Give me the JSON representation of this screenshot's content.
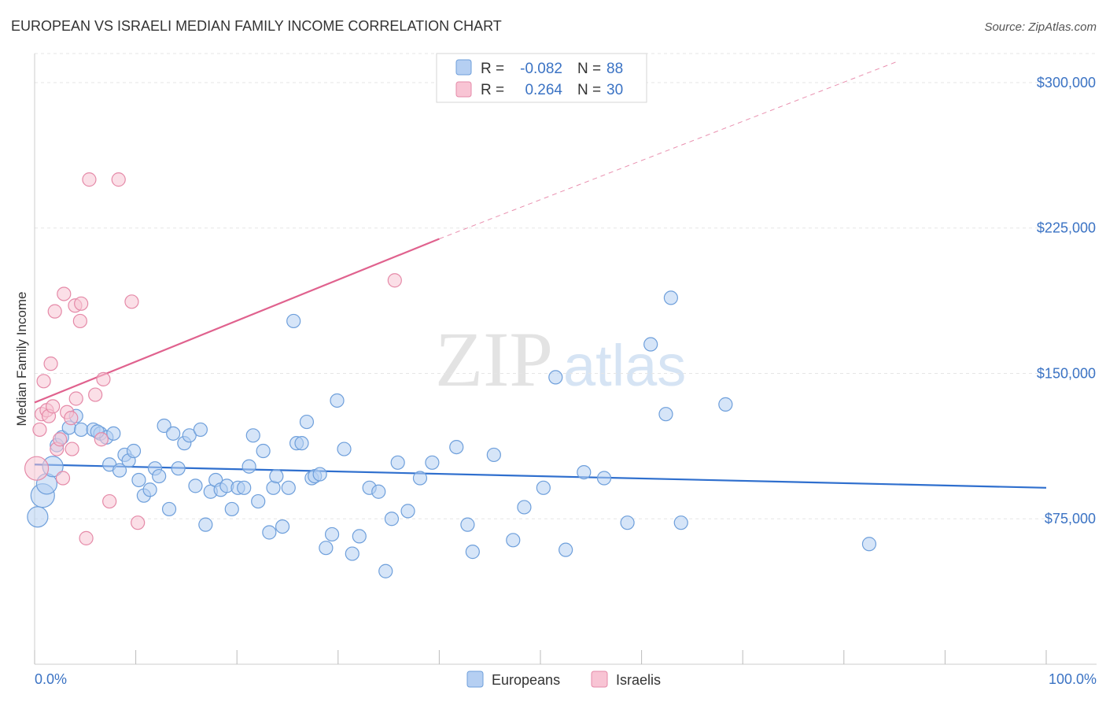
{
  "title": "EUROPEAN VS ISRAELI MEDIAN FAMILY INCOME CORRELATION CHART",
  "source": "Source: ZipAtlas.com",
  "watermark": {
    "part1": "ZIP",
    "part2": "atlas"
  },
  "colors": {
    "european": "#6e9fdb",
    "european_fill": "#b5cff2",
    "european_line": "#2f6fce",
    "israeli": "#e58aa8",
    "israeli_fill": "#f8c4d4",
    "israeli_line": "#e0628e",
    "tick_text": "#3b73c4",
    "grid": "#e6e6e6"
  },
  "legend": {
    "rows": [
      {
        "r_label": "R =",
        "r_value": "-0.082",
        "n_label": "N =",
        "n_value": "88"
      },
      {
        "r_label": "R =",
        "r_value": "0.264",
        "n_label": "N =",
        "n_value": "30"
      }
    ]
  },
  "bottom_legend": [
    "Europeans",
    "Israelis"
  ],
  "chart_data": {
    "type": "scatter",
    "title": "EUROPEAN VS ISRAELI MEDIAN FAMILY INCOME CORRELATION CHART",
    "xlabel": "",
    "ylabel": "Median Family Income",
    "xlim": [
      0,
      100
    ],
    "ylim": [
      0,
      315000
    ],
    "x_tick_labels": [
      "0.0%",
      "100.0%"
    ],
    "y_ticks": [
      75000,
      150000,
      225000,
      300000
    ],
    "y_tick_labels": [
      "$75,000",
      "$150,000",
      "$225,000",
      "$300,000"
    ],
    "grid": true,
    "legend_position": "top-center",
    "series": [
      {
        "name": "Europeans",
        "r": -0.082,
        "n": 88,
        "trend": {
          "x": [
            0,
            100
          ],
          "y": [
            103000,
            91000
          ],
          "solid_until": 100
        },
        "points": [
          {
            "x": 0.3,
            "y": 76000,
            "s": "l"
          },
          {
            "x": 0.8,
            "y": 87000,
            "s": "xl"
          },
          {
            "x": 1.2,
            "y": 93000,
            "s": "l"
          },
          {
            "x": 1.8,
            "y": 102000,
            "s": "l"
          },
          {
            "x": 2.2,
            "y": 113000,
            "s": "m"
          },
          {
            "x": 2.7,
            "y": 117000,
            "s": "m"
          },
          {
            "x": 3.4,
            "y": 122000,
            "s": "m"
          },
          {
            "x": 4.1,
            "y": 128000,
            "s": "m"
          },
          {
            "x": 4.6,
            "y": 121000,
            "s": "m"
          },
          {
            "x": 5.8,
            "y": 121000,
            "s": "m"
          },
          {
            "x": 6.5,
            "y": 119000,
            "s": "m"
          },
          {
            "x": 7.1,
            "y": 117000,
            "s": "m"
          },
          {
            "x": 7.4,
            "y": 103000,
            "s": "m"
          },
          {
            "x": 7.8,
            "y": 119000,
            "s": "m"
          },
          {
            "x": 8.4,
            "y": 100000,
            "s": "m"
          },
          {
            "x": 8.9,
            "y": 108000,
            "s": "m"
          },
          {
            "x": 9.3,
            "y": 105000,
            "s": "m"
          },
          {
            "x": 9.8,
            "y": 110000,
            "s": "m"
          },
          {
            "x": 10.3,
            "y": 95000,
            "s": "m"
          },
          {
            "x": 10.8,
            "y": 87000,
            "s": "m"
          },
          {
            "x": 11.4,
            "y": 90000,
            "s": "m"
          },
          {
            "x": 11.9,
            "y": 101000,
            "s": "m"
          },
          {
            "x": 12.3,
            "y": 97000,
            "s": "m"
          },
          {
            "x": 12.8,
            "y": 123000,
            "s": "m"
          },
          {
            "x": 13.3,
            "y": 80000,
            "s": "m"
          },
          {
            "x": 13.7,
            "y": 119000,
            "s": "m"
          },
          {
            "x": 14.2,
            "y": 101000,
            "s": "m"
          },
          {
            "x": 14.8,
            "y": 114000,
            "s": "m"
          },
          {
            "x": 15.3,
            "y": 118000,
            "s": "m"
          },
          {
            "x": 15.9,
            "y": 92000,
            "s": "m"
          },
          {
            "x": 16.4,
            "y": 121000,
            "s": "m"
          },
          {
            "x": 16.9,
            "y": 72000,
            "s": "m"
          },
          {
            "x": 17.4,
            "y": 89000,
            "s": "m"
          },
          {
            "x": 17.9,
            "y": 95000,
            "s": "m"
          },
          {
            "x": 18.4,
            "y": 90000,
            "s": "m"
          },
          {
            "x": 19.0,
            "y": 92000,
            "s": "m"
          },
          {
            "x": 19.5,
            "y": 80000,
            "s": "m"
          },
          {
            "x": 20.1,
            "y": 91000,
            "s": "m"
          },
          {
            "x": 20.7,
            "y": 91000,
            "s": "m"
          },
          {
            "x": 21.2,
            "y": 102000,
            "s": "m"
          },
          {
            "x": 21.6,
            "y": 118000,
            "s": "m"
          },
          {
            "x": 22.1,
            "y": 84000,
            "s": "m"
          },
          {
            "x": 22.6,
            "y": 110000,
            "s": "m"
          },
          {
            "x": 23.2,
            "y": 68000,
            "s": "m"
          },
          {
            "x": 23.6,
            "y": 91000,
            "s": "m"
          },
          {
            "x": 23.9,
            "y": 97000,
            "s": "m"
          },
          {
            "x": 24.5,
            "y": 71000,
            "s": "m"
          },
          {
            "x": 25.1,
            "y": 91000,
            "s": "m"
          },
          {
            "x": 25.6,
            "y": 177000,
            "s": "m"
          },
          {
            "x": 25.9,
            "y": 114000,
            "s": "m"
          },
          {
            "x": 26.4,
            "y": 114000,
            "s": "m"
          },
          {
            "x": 26.9,
            "y": 125000,
            "s": "m"
          },
          {
            "x": 27.4,
            "y": 96000,
            "s": "m"
          },
          {
            "x": 27.7,
            "y": 97000,
            "s": "m"
          },
          {
            "x": 28.2,
            "y": 98000,
            "s": "m"
          },
          {
            "x": 28.8,
            "y": 60000,
            "s": "m"
          },
          {
            "x": 29.4,
            "y": 67000,
            "s": "m"
          },
          {
            "x": 29.9,
            "y": 136000,
            "s": "m"
          },
          {
            "x": 30.6,
            "y": 111000,
            "s": "m"
          },
          {
            "x": 31.4,
            "y": 57000,
            "s": "m"
          },
          {
            "x": 32.1,
            "y": 66000,
            "s": "m"
          },
          {
            "x": 33.1,
            "y": 91000,
            "s": "m"
          },
          {
            "x": 34.7,
            "y": 48000,
            "s": "m"
          },
          {
            "x": 35.3,
            "y": 75000,
            "s": "m"
          },
          {
            "x": 35.9,
            "y": 104000,
            "s": "m"
          },
          {
            "x": 36.9,
            "y": 79000,
            "s": "m"
          },
          {
            "x": 38.1,
            "y": 96000,
            "s": "m"
          },
          {
            "x": 39.3,
            "y": 104000,
            "s": "m"
          },
          {
            "x": 41.7,
            "y": 112000,
            "s": "m"
          },
          {
            "x": 42.8,
            "y": 72000,
            "s": "m"
          },
          {
            "x": 43.3,
            "y": 58000,
            "s": "m"
          },
          {
            "x": 45.4,
            "y": 108000,
            "s": "m"
          },
          {
            "x": 47.3,
            "y": 64000,
            "s": "m"
          },
          {
            "x": 48.4,
            "y": 81000,
            "s": "m"
          },
          {
            "x": 50.3,
            "y": 91000,
            "s": "m"
          },
          {
            "x": 51.5,
            "y": 148000,
            "s": "m"
          },
          {
            "x": 52.5,
            "y": 59000,
            "s": "m"
          },
          {
            "x": 54.3,
            "y": 99000,
            "s": "m"
          },
          {
            "x": 56.3,
            "y": 96000,
            "s": "m"
          },
          {
            "x": 58.6,
            "y": 73000,
            "s": "m"
          },
          {
            "x": 60.9,
            "y": 165000,
            "s": "m"
          },
          {
            "x": 62.4,
            "y": 129000,
            "s": "m"
          },
          {
            "x": 62.9,
            "y": 189000,
            "s": "m"
          },
          {
            "x": 63.9,
            "y": 73000,
            "s": "m"
          },
          {
            "x": 68.3,
            "y": 134000,
            "s": "m"
          },
          {
            "x": 82.5,
            "y": 62000,
            "s": "m"
          },
          {
            "x": 34.0,
            "y": 89000,
            "s": "m"
          },
          {
            "x": 6.2,
            "y": 120000,
            "s": "m"
          }
        ]
      },
      {
        "name": "Israelis",
        "r": 0.264,
        "n": 30,
        "trend": {
          "x": [
            0,
            100
          ],
          "y": [
            135000,
            346000
          ],
          "solid_until": 40
        },
        "points": [
          {
            "x": 0.2,
            "y": 101000,
            "s": "xl"
          },
          {
            "x": 0.5,
            "y": 121000,
            "s": "m"
          },
          {
            "x": 0.7,
            "y": 129000,
            "s": "m"
          },
          {
            "x": 0.9,
            "y": 146000,
            "s": "m"
          },
          {
            "x": 1.2,
            "y": 131000,
            "s": "m"
          },
          {
            "x": 1.4,
            "y": 128000,
            "s": "m"
          },
          {
            "x": 1.6,
            "y": 155000,
            "s": "m"
          },
          {
            "x": 1.8,
            "y": 133000,
            "s": "m"
          },
          {
            "x": 2.0,
            "y": 182000,
            "s": "m"
          },
          {
            "x": 2.2,
            "y": 111000,
            "s": "m"
          },
          {
            "x": 2.5,
            "y": 116000,
            "s": "m"
          },
          {
            "x": 2.8,
            "y": 96000,
            "s": "m"
          },
          {
            "x": 2.9,
            "y": 191000,
            "s": "m"
          },
          {
            "x": 3.2,
            "y": 130000,
            "s": "m"
          },
          {
            "x": 3.6,
            "y": 127000,
            "s": "m"
          },
          {
            "x": 3.7,
            "y": 111000,
            "s": "m"
          },
          {
            "x": 4.0,
            "y": 185000,
            "s": "m"
          },
          {
            "x": 4.1,
            "y": 137000,
            "s": "m"
          },
          {
            "x": 4.6,
            "y": 186000,
            "s": "m"
          },
          {
            "x": 4.5,
            "y": 177000,
            "s": "m"
          },
          {
            "x": 5.1,
            "y": 65000,
            "s": "m"
          },
          {
            "x": 5.4,
            "y": 250000,
            "s": "m"
          },
          {
            "x": 6.0,
            "y": 139000,
            "s": "m"
          },
          {
            "x": 6.6,
            "y": 116000,
            "s": "m"
          },
          {
            "x": 6.8,
            "y": 147000,
            "s": "m"
          },
          {
            "x": 7.4,
            "y": 84000,
            "s": "m"
          },
          {
            "x": 8.3,
            "y": 250000,
            "s": "m"
          },
          {
            "x": 9.6,
            "y": 187000,
            "s": "m"
          },
          {
            "x": 10.2,
            "y": 73000,
            "s": "m"
          },
          {
            "x": 35.6,
            "y": 198000,
            "s": "m"
          }
        ]
      }
    ]
  }
}
